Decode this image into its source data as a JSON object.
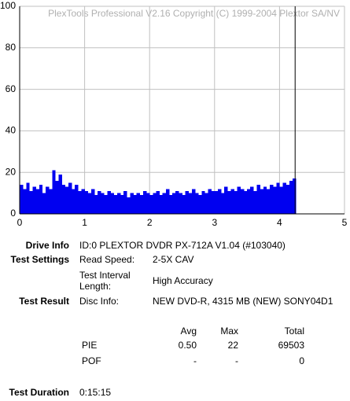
{
  "chart_data": {
    "type": "bar",
    "annotation": "PlexTools Professional V2.16 Copyright (C) 1999-2004 Plextor SA/NV",
    "x": [
      0,
      0.05,
      0.1,
      0.15,
      0.2,
      0.25,
      0.3,
      0.35,
      0.4,
      0.45,
      0.5,
      0.55,
      0.6,
      0.65,
      0.7,
      0.75,
      0.8,
      0.85,
      0.9,
      0.95,
      1,
      1.05,
      1.1,
      1.15,
      1.2,
      1.25,
      1.3,
      1.35,
      1.4,
      1.45,
      1.5,
      1.55,
      1.6,
      1.65,
      1.7,
      1.75,
      1.8,
      1.85,
      1.9,
      1.95,
      2,
      2.05,
      2.1,
      2.15,
      2.2,
      2.25,
      2.3,
      2.35,
      2.4,
      2.45,
      2.5,
      2.55,
      2.6,
      2.65,
      2.7,
      2.75,
      2.8,
      2.85,
      2.9,
      2.95,
      3,
      3.05,
      3.1,
      3.15,
      3.2,
      3.25,
      3.3,
      3.35,
      3.4,
      3.45,
      3.5,
      3.55,
      3.6,
      3.65,
      3.7,
      3.75,
      3.8,
      3.85,
      3.9,
      3.95,
      4,
      4.05,
      4.1,
      4.15,
      4.2
    ],
    "values": [
      14,
      12,
      15,
      11,
      13,
      12,
      14,
      10,
      13,
      12,
      21,
      16,
      19,
      14,
      13,
      15,
      12,
      14,
      11,
      12,
      11,
      10,
      12,
      9,
      11,
      10,
      9,
      11,
      10,
      9,
      10,
      9,
      11,
      8,
      10,
      9,
      10,
      9,
      11,
      10,
      9,
      10,
      11,
      9,
      10,
      12,
      9,
      10,
      11,
      10,
      9,
      11,
      10,
      12,
      10,
      9,
      11,
      10,
      12,
      11,
      11,
      12,
      10,
      13,
      11,
      12,
      11,
      13,
      12,
      11,
      12,
      13,
      11,
      14,
      12,
      13,
      12,
      14,
      13,
      15,
      13,
      15,
      14,
      16,
      17
    ],
    "color": "#0000f0",
    "end_marker": 4.24,
    "xlim": [
      0,
      5
    ],
    "xticks": [
      0,
      1,
      2,
      3,
      4,
      5
    ],
    "ylim": [
      0,
      100
    ],
    "yticks": [
      0,
      20,
      40,
      60,
      80,
      100
    ],
    "grid": true
  },
  "report": {
    "drive_info": {
      "label": "Drive Info",
      "value": "ID:0 PLEXTOR DVDR PX-712A V1.04 (#103040)"
    },
    "test_settings": {
      "label": "Test Settings",
      "read_speed_label": "Read Speed:",
      "read_speed": "2-5X CAV",
      "interval_label": [
        "Test Interval",
        "Length:"
      ],
      "interval": "High Accuracy"
    },
    "test_result": {
      "label": "Test Result",
      "disc_label": "Disc Info:",
      "disc": "NEW DVD-R, 4315 MB (NEW) SONY04D1"
    },
    "table": {
      "headers": [
        "Avg",
        "Max",
        "Total"
      ],
      "rows": [
        [
          "PIE",
          "0.50",
          "22",
          "69503"
        ],
        [
          "POF",
          "-",
          "-",
          "0"
        ]
      ]
    },
    "test_duration": {
      "label": "Test Duration",
      "value": "0:15:15"
    }
  }
}
